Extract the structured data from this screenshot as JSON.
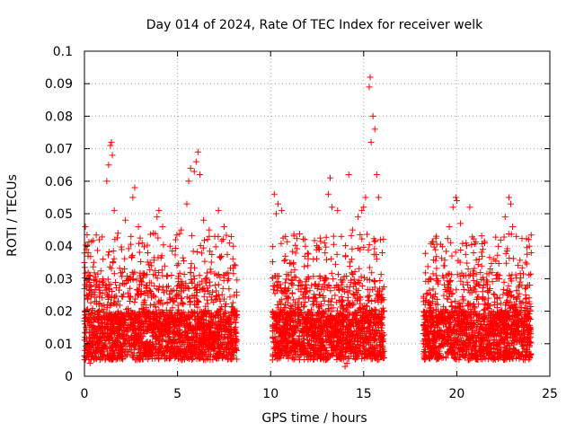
{
  "chart_data": {
    "type": "scatter",
    "title": "Day 014 of 2024, Rate Of TEC Index for receiver welk",
    "xlabel": "GPS time / hours",
    "ylabel": "ROTI / TECUs",
    "xlim": [
      0,
      25
    ],
    "ylim": [
      0,
      0.1
    ],
    "x_ticks": [
      0,
      5,
      10,
      15,
      20,
      25
    ],
    "x_tick_labels": [
      "0",
      "5",
      "10",
      "15",
      "20",
      "25"
    ],
    "y_ticks": [
      0,
      0.01,
      0.02,
      0.03,
      0.04,
      0.05,
      0.06,
      0.07,
      0.08,
      0.09,
      0.1
    ],
    "y_tick_labels": [
      "0",
      "0.01",
      "0.02",
      "0.03",
      "0.04",
      "0.05",
      "0.06",
      "0.07",
      "0.08",
      "0.09",
      "0.1"
    ],
    "grid": true,
    "marker": "+",
    "color": "#ff0000",
    "coverage_hours": [
      [
        0.0,
        8.2
      ],
      [
        10.1,
        16.1
      ],
      [
        18.2,
        24.0
      ]
    ],
    "typical_range": [
      0.005,
      0.02
    ],
    "series": [
      {
        "name": "ROTI",
        "points": [
          [
            0.05,
            0.046
          ],
          [
            0.1,
            0.039
          ],
          [
            0.2,
            0.032
          ],
          [
            0.3,
            0.028
          ],
          [
            0.5,
            0.035
          ],
          [
            0.8,
            0.042
          ],
          [
            1.0,
            0.036
          ],
          [
            1.2,
            0.06
          ],
          [
            1.3,
            0.065
          ],
          [
            1.4,
            0.071
          ],
          [
            1.45,
            0.072
          ],
          [
            1.5,
            0.068
          ],
          [
            1.6,
            0.051
          ],
          [
            1.8,
            0.044
          ],
          [
            2.0,
            0.039
          ],
          [
            2.2,
            0.048
          ],
          [
            2.5,
            0.043
          ],
          [
            2.6,
            0.055
          ],
          [
            2.7,
            0.058
          ],
          [
            2.9,
            0.046
          ],
          [
            3.1,
            0.041
          ],
          [
            3.4,
            0.038
          ],
          [
            3.7,
            0.044
          ],
          [
            3.9,
            0.049
          ],
          [
            4.0,
            0.051
          ],
          [
            4.2,
            0.046
          ],
          [
            4.6,
            0.04
          ],
          [
            4.9,
            0.042
          ],
          [
            5.2,
            0.045
          ],
          [
            5.5,
            0.053
          ],
          [
            5.6,
            0.06
          ],
          [
            5.7,
            0.064
          ],
          [
            5.9,
            0.063
          ],
          [
            6.0,
            0.066
          ],
          [
            6.1,
            0.069
          ],
          [
            6.2,
            0.062
          ],
          [
            6.4,
            0.048
          ],
          [
            6.7,
            0.045
          ],
          [
            7.0,
            0.043
          ],
          [
            7.2,
            0.051
          ],
          [
            7.5,
            0.046
          ],
          [
            7.8,
            0.041
          ],
          [
            8.0,
            0.04
          ],
          [
            8.1,
            0.034
          ],
          [
            10.2,
            0.056
          ],
          [
            10.3,
            0.05
          ],
          [
            10.4,
            0.053
          ],
          [
            10.6,
            0.051
          ],
          [
            10.8,
            0.043
          ],
          [
            11.1,
            0.032
          ],
          [
            11.5,
            0.028
          ],
          [
            12.0,
            0.034
          ],
          [
            12.3,
            0.036
          ],
          [
            12.6,
            0.039
          ],
          [
            12.9,
            0.041
          ],
          [
            13.1,
            0.056
          ],
          [
            13.2,
            0.061
          ],
          [
            13.3,
            0.052
          ],
          [
            13.6,
            0.051
          ],
          [
            13.8,
            0.043
          ],
          [
            14.2,
            0.062
          ],
          [
            14.4,
            0.045
          ],
          [
            14.7,
            0.049
          ],
          [
            14.9,
            0.051
          ],
          [
            15.0,
            0.052
          ],
          [
            15.1,
            0.055
          ],
          [
            15.3,
            0.089
          ],
          [
            15.35,
            0.092
          ],
          [
            15.4,
            0.072
          ],
          [
            15.5,
            0.08
          ],
          [
            15.6,
            0.076
          ],
          [
            15.7,
            0.062
          ],
          [
            15.8,
            0.055
          ],
          [
            15.9,
            0.042
          ],
          [
            16.0,
            0.038
          ],
          [
            18.3,
            0.022
          ],
          [
            18.6,
            0.025
          ],
          [
            19.0,
            0.029
          ],
          [
            19.3,
            0.034
          ],
          [
            19.6,
            0.046
          ],
          [
            19.8,
            0.052
          ],
          [
            19.95,
            0.055
          ],
          [
            20.0,
            0.054
          ],
          [
            20.2,
            0.047
          ],
          [
            20.5,
            0.041
          ],
          [
            20.7,
            0.052
          ],
          [
            20.9,
            0.038
          ],
          [
            21.2,
            0.036
          ],
          [
            21.5,
            0.041
          ],
          [
            21.8,
            0.033
          ],
          [
            22.0,
            0.036
          ],
          [
            22.3,
            0.031
          ],
          [
            22.6,
            0.049
          ],
          [
            22.8,
            0.055
          ],
          [
            22.9,
            0.053
          ],
          [
            23.0,
            0.046
          ],
          [
            23.2,
            0.043
          ],
          [
            23.4,
            0.029
          ],
          [
            23.7,
            0.035
          ],
          [
            23.9,
            0.04
          ],
          [
            24.0,
            0.038
          ],
          [
            14.0,
            0.003
          ],
          [
            14.1,
            0.004
          ],
          [
            0.3,
            0.004
          ],
          [
            23.9,
            0.006
          ]
        ]
      }
    ]
  }
}
